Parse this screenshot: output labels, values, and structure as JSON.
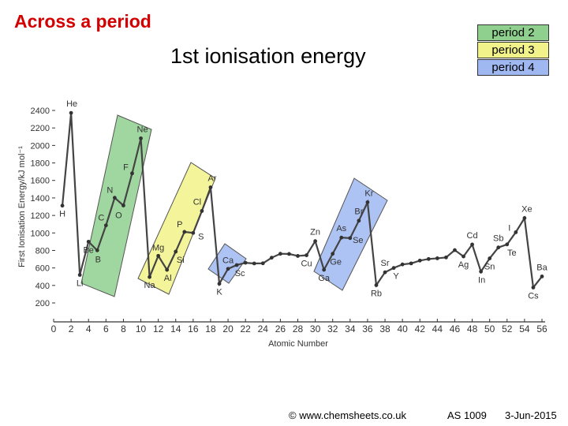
{
  "slide": {
    "title": "Across a period",
    "footer": {
      "copyright": "© www.chemsheets.co.uk",
      "code": "AS 1009",
      "date": "3-Jun-2015"
    }
  },
  "legend": [
    {
      "label": "period 2",
      "color": "#8fd08f"
    },
    {
      "label": "period 3",
      "color": "#f2f28a"
    },
    {
      "label": "period 4",
      "color": "#9fb8f2"
    }
  ],
  "chart_data": {
    "type": "line",
    "title": "1st ionisation energy",
    "xlabel": "Atomic Number",
    "ylabel": "First Ionisation Energy/kJ mol⁻¹",
    "xlim": [
      0,
      56
    ],
    "ylim": [
      200,
      2400
    ],
    "x_ticks": [
      0,
      2,
      4,
      6,
      8,
      10,
      12,
      14,
      16,
      18,
      20,
      22,
      24,
      26,
      28,
      30,
      32,
      34,
      36,
      38,
      40,
      42,
      44,
      46,
      48,
      50,
      52,
      54,
      56
    ],
    "y_ticks": [
      200,
      400,
      600,
      800,
      1000,
      1200,
      1400,
      1600,
      1800,
      2000,
      2200,
      2400
    ],
    "series": [
      {
        "x": [
          1,
          2,
          3,
          4,
          5,
          6,
          7,
          8,
          9,
          10,
          11,
          12,
          13,
          14,
          15,
          16,
          17,
          18,
          19,
          20,
          21,
          22,
          23,
          24,
          25,
          26,
          27,
          28,
          29,
          30,
          31,
          32,
          33,
          34,
          35,
          36,
          37,
          38,
          39,
          40,
          41,
          42,
          43,
          44,
          45,
          46,
          47,
          48,
          49,
          50,
          51,
          52,
          53,
          54,
          55,
          56
        ],
        "y": [
          1312,
          2372,
          520,
          900,
          801,
          1086,
          1402,
          1314,
          1681,
          2081,
          496,
          738,
          578,
          787,
          1012,
          1000,
          1251,
          1521,
          419,
          590,
          633,
          659,
          651,
          653,
          717,
          762,
          760,
          737,
          745,
          906,
          579,
          762,
          947,
          941,
          1140,
          1351,
          403,
          550,
          600,
          640,
          652,
          684,
          702,
          710,
          720,
          804,
          731,
          868,
          558,
          709,
          834,
          869,
          1008,
          1170,
          376,
          503
        ]
      }
    ],
    "element_labels": [
      {
        "symbol": "H",
        "x": 1,
        "y": 1312
      },
      {
        "symbol": "He",
        "x": 2,
        "y": 2372
      },
      {
        "symbol": "Li",
        "x": 3,
        "y": 520
      },
      {
        "symbol": "Be",
        "x": 4,
        "y": 900
      },
      {
        "symbol": "B",
        "x": 5,
        "y": 801
      },
      {
        "symbol": "C",
        "x": 6,
        "y": 1086
      },
      {
        "symbol": "N",
        "x": 7,
        "y": 1402
      },
      {
        "symbol": "O",
        "x": 8,
        "y": 1314
      },
      {
        "symbol": "F",
        "x": 9,
        "y": 1681
      },
      {
        "symbol": "Ne",
        "x": 10,
        "y": 2081
      },
      {
        "symbol": "Na",
        "x": 11,
        "y": 496
      },
      {
        "symbol": "Mg",
        "x": 12,
        "y": 738
      },
      {
        "symbol": "Al",
        "x": 13,
        "y": 578
      },
      {
        "symbol": "Si",
        "x": 14,
        "y": 787
      },
      {
        "symbol": "P",
        "x": 15,
        "y": 1012
      },
      {
        "symbol": "S",
        "x": 16,
        "y": 1000
      },
      {
        "symbol": "Cl",
        "x": 17,
        "y": 1251
      },
      {
        "symbol": "Ar",
        "x": 18,
        "y": 1521
      },
      {
        "symbol": "K",
        "x": 19,
        "y": 419
      },
      {
        "symbol": "Ca",
        "x": 20,
        "y": 590
      },
      {
        "symbol": "Sc",
        "x": 21,
        "y": 633
      },
      {
        "symbol": "Cu",
        "x": 29,
        "y": 745
      },
      {
        "symbol": "Zn",
        "x": 30,
        "y": 906
      },
      {
        "symbol": "Ga",
        "x": 31,
        "y": 579
      },
      {
        "symbol": "Ge",
        "x": 32,
        "y": 762
      },
      {
        "symbol": "As",
        "x": 33,
        "y": 947
      },
      {
        "symbol": "Se",
        "x": 34,
        "y": 941
      },
      {
        "symbol": "Br",
        "x": 35,
        "y": 1140
      },
      {
        "symbol": "Kr",
        "x": 36,
        "y": 1351
      },
      {
        "symbol": "Rb",
        "x": 37,
        "y": 403
      },
      {
        "symbol": "Sr",
        "x": 38,
        "y": 550
      },
      {
        "symbol": "Y",
        "x": 39,
        "y": 600
      },
      {
        "symbol": "Ag",
        "x": 47,
        "y": 731
      },
      {
        "symbol": "Cd",
        "x": 48,
        "y": 868
      },
      {
        "symbol": "In",
        "x": 49,
        "y": 558
      },
      {
        "symbol": "Sn",
        "x": 50,
        "y": 709
      },
      {
        "symbol": "Sb",
        "x": 51,
        "y": 834
      },
      {
        "symbol": "Te",
        "x": 52,
        "y": 869
      },
      {
        "symbol": "I",
        "x": 53,
        "y": 1008
      },
      {
        "symbol": "Xe",
        "x": 54,
        "y": 1170
      },
      {
        "symbol": "Cs",
        "x": 55,
        "y": 376
      },
      {
        "symbol": "Ba",
        "x": 56,
        "y": 503
      }
    ]
  }
}
